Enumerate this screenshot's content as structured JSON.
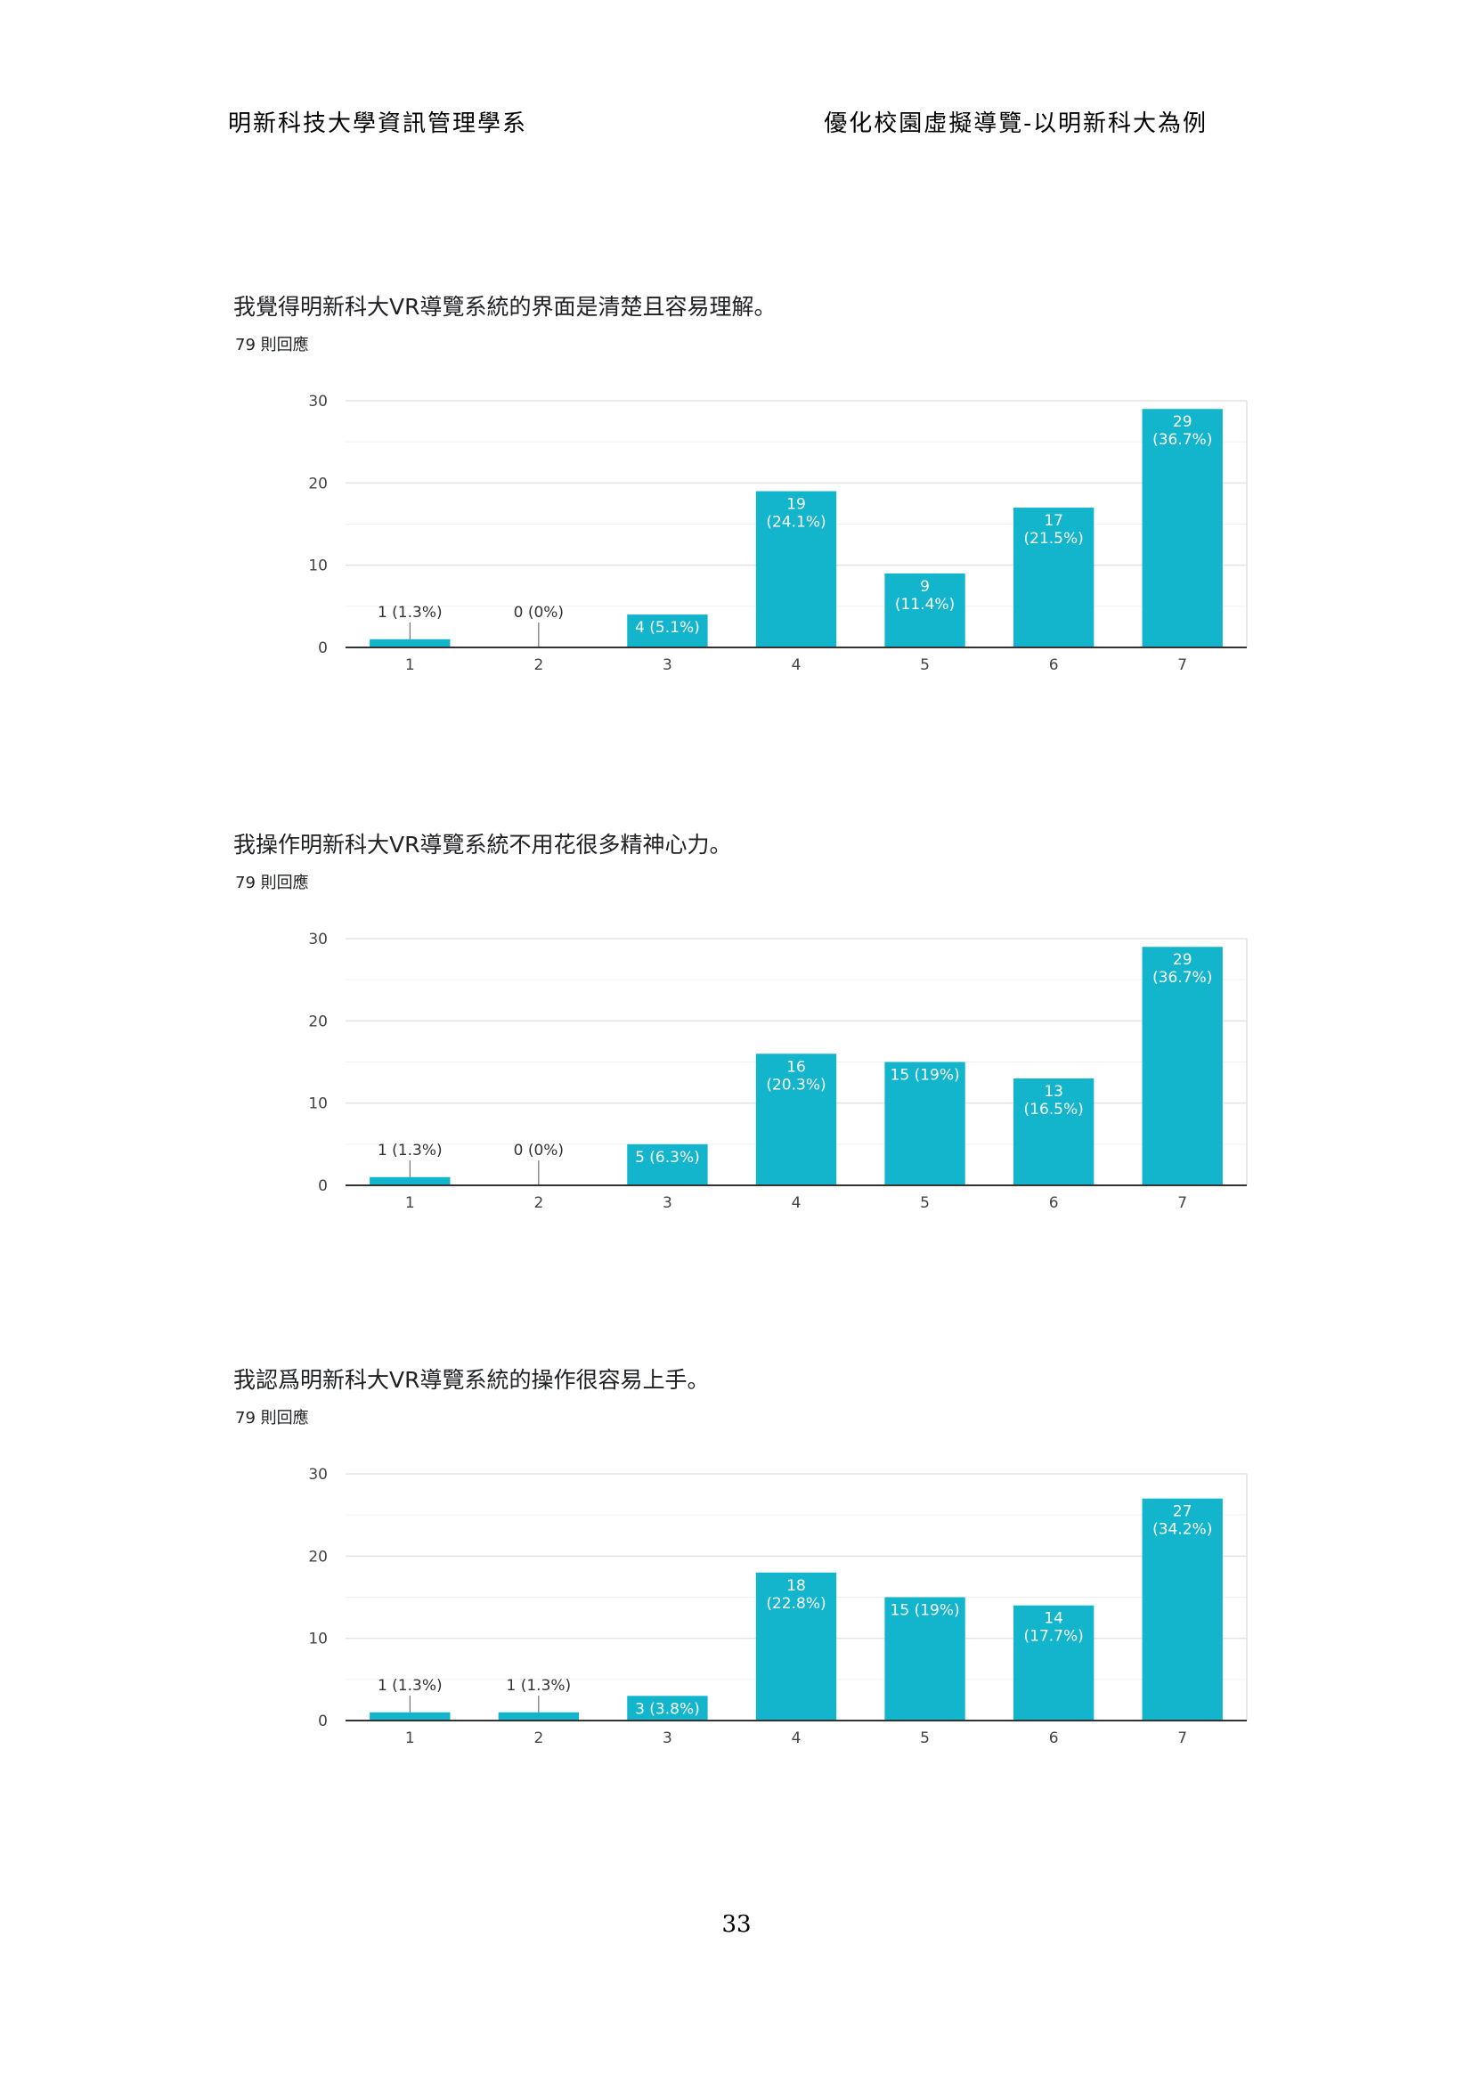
{
  "header": {
    "left": "明新科技大學資訊管理學系",
    "right": "優化校園虛擬導覽-以明新科大為例"
  },
  "page_number": "33",
  "chart_data": [
    {
      "type": "bar",
      "title": "我覺得明新科大VR導覽系統的界面是清楚且容易理解。",
      "subtitle": "79 則回應",
      "categories": [
        "1",
        "2",
        "3",
        "4",
        "5",
        "6",
        "7"
      ],
      "values": [
        1,
        0,
        4,
        19,
        9,
        17,
        29
      ],
      "data_labels": [
        "1 (1.3%)",
        "0 (0%)",
        "4 (5.1%)",
        "19 (24.1%)",
        "9 (11.4%)",
        "17 (21.5%)",
        "29 (36.7%)"
      ],
      "yticks": [
        0,
        10,
        20,
        30
      ],
      "ylim": [
        0,
        30
      ],
      "grid": true,
      "color": "#12B5CB"
    },
    {
      "type": "bar",
      "title": "我操作明新科大VR導覽系統不用花很多精神心力。",
      "subtitle": "79 則回應",
      "categories": [
        "1",
        "2",
        "3",
        "4",
        "5",
        "6",
        "7"
      ],
      "values": [
        1,
        0,
        5,
        16,
        15,
        13,
        29
      ],
      "data_labels": [
        "1 (1.3%)",
        "0 (0%)",
        "5 (6.3%)",
        "16 (20.3%)",
        "15 (19%)",
        "13 (16.5%)",
        "29 (36.7%)"
      ],
      "yticks": [
        0,
        10,
        20,
        30
      ],
      "ylim": [
        0,
        30
      ],
      "grid": true,
      "color": "#12B5CB"
    },
    {
      "type": "bar",
      "title": "我認爲明新科大VR導覽系統的操作很容易上手。",
      "subtitle": "79 則回應",
      "categories": [
        "1",
        "2",
        "3",
        "4",
        "5",
        "6",
        "7"
      ],
      "values": [
        1,
        1,
        3,
        18,
        15,
        14,
        27
      ],
      "data_labels": [
        "1 (1.3%)",
        "1 (1.3%)",
        "3 (3.8%)",
        "18 (22.8%)",
        "15 (19%)",
        "14 (17.7%)",
        "27 (34.2%)"
      ],
      "yticks": [
        0,
        10,
        20,
        30
      ],
      "ylim": [
        0,
        30
      ],
      "grid": true,
      "color": "#12B5CB"
    }
  ]
}
